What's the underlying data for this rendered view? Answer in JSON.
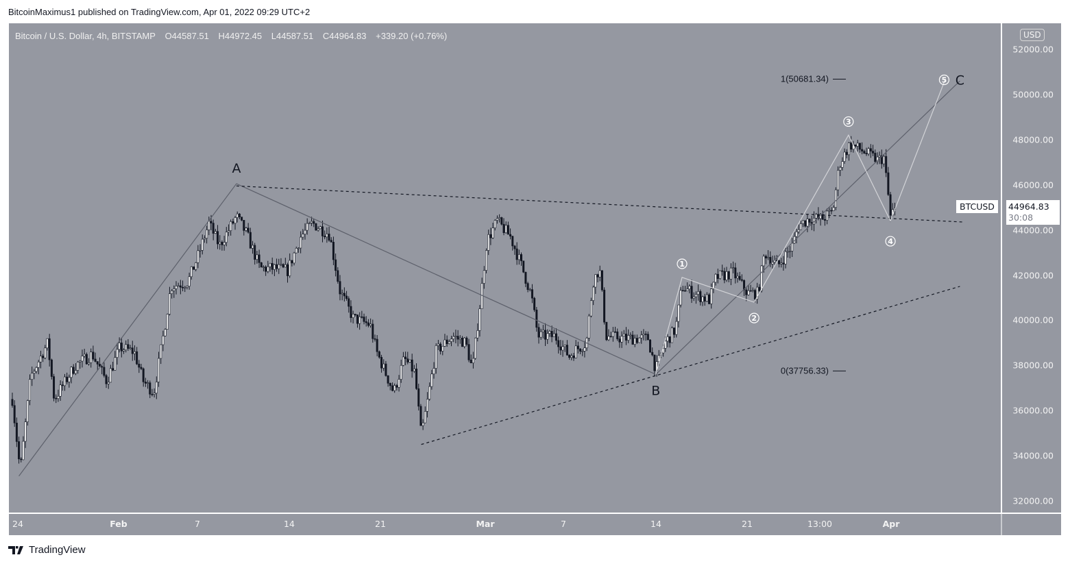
{
  "header": {
    "published": "BitcoinMaximus1 published on TradingView.com, Apr 01, 2022 09:29 UTC+2"
  },
  "legend": {
    "symbol": "Bitcoin / U.S. Dollar, 4h, BITSTAMP",
    "open": "O44587.51",
    "high": "H44972.45",
    "low": "L44587.51",
    "close": "C44964.83",
    "change": "+339.20 (+0.76%)"
  },
  "price_axis": {
    "currency": "USD",
    "labels": [
      "52000.00",
      "50000.00",
      "48000.00",
      "46000.00",
      "44000.00",
      "42000.00",
      "40000.00",
      "38000.00",
      "36000.00",
      "34000.00",
      "32000.00"
    ]
  },
  "time_axis": {
    "labels": [
      "24",
      "Feb",
      "7",
      "14",
      "21",
      "Mar",
      "7",
      "14",
      "21",
      "13:00",
      "Apr"
    ]
  },
  "last_price": {
    "symbol": "BTCUSD",
    "price": "44964.83",
    "countdown": "30:08"
  },
  "footer": {
    "brand": "TradingView"
  },
  "colors": {
    "background": "#9598a1",
    "up": "#ffffff",
    "down": "#131722",
    "wave": "#d3d4d8",
    "trend": "#5d606b"
  },
  "chart_data": {
    "type": "candlestick",
    "title": "Bitcoin / U.S. Dollar, 4h, BITSTAMP",
    "x_unit": "days since Jan 24",
    "ylim": [
      31000,
      53000
    ],
    "price_path": {
      "x": [
        0,
        0.6,
        1.4,
        2.7,
        3.2,
        4.8,
        6.1,
        7.2,
        8.2,
        9.3,
        10,
        10.8,
        11.6,
        12.1,
        13.4,
        14.2,
        15,
        15.8,
        17.1,
        17.9,
        18.9,
        20,
        21,
        22,
        22.9,
        24.2,
        25,
        26,
        27.3,
        27.8,
        29.1,
        29.9,
        30.7,
        31.2,
        31.7,
        32.3,
        33.6,
        34.6,
        35.1,
        35.7,
        36.2,
        37,
        38,
        38.8,
        39.6,
        40.1,
        41.4,
        42.5,
        43,
        43.8,
        44.3,
        44.8,
        45.3,
        46.7,
        48.5,
        49.1,
        49.8,
        50.6,
        51.1,
        51.9,
        53.2,
        53.7,
        55,
        56.1,
        56.9,
        57.4,
        58.4,
        59.5,
        60,
        60.8,
        61.8,
        62.6,
        63.1,
        63.9,
        64.9,
        66,
        66.5,
        66.8,
        67,
        67.3
      ],
      "close": [
        36500,
        33300,
        37500,
        39000,
        36500,
        38000,
        38500,
        37300,
        38800,
        38600,
        37300,
        36800,
        39600,
        41500,
        41700,
        42900,
        44300,
        43300,
        44600,
        43800,
        42300,
        42300,
        42200,
        43700,
        44300,
        43800,
        41300,
        40100,
        39800,
        38600,
        36800,
        38300,
        37700,
        34900,
        36500,
        38600,
        39300,
        39000,
        37800,
        40800,
        43500,
        44400,
        43700,
        42500,
        41100,
        39300,
        39300,
        38400,
        38700,
        39000,
        41700,
        42300,
        39300,
        39200,
        39200,
        37800,
        39000,
        39600,
        41500,
        41200,
        40900,
        41900,
        42100,
        41200,
        41200,
        43000,
        42400,
        43300,
        44200,
        44500,
        44500,
        44800,
        46900,
        47800,
        47500,
        47100,
        47200,
        45700,
        44600,
        44965
      ]
    },
    "annotations": {
      "wave_labels": [
        {
          "text": "A",
          "x": 17.1,
          "y": 46750
        },
        {
          "text": "B",
          "x": 49.1,
          "y": 36900
        },
        {
          "text": "C",
          "x": 72.3,
          "y": 50650
        },
        {
          "text": "①",
          "x": 51.1,
          "y": 42500
        },
        {
          "text": "②",
          "x": 56.6,
          "y": 40100
        },
        {
          "text": "③",
          "x": 63.8,
          "y": 48800
        },
        {
          "text": "④",
          "x": 67.0,
          "y": 43500
        },
        {
          "text": "⑤",
          "x": 71.1,
          "y": 50650
        }
      ],
      "fib": [
        {
          "text": "1(50681.34)",
          "price": 50681.34
        },
        {
          "text": "0(37756.33)",
          "price": 37756.33
        }
      ]
    }
  }
}
